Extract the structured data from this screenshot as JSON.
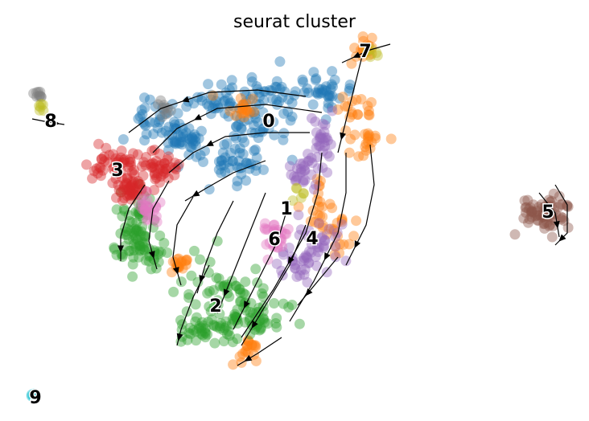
{
  "chart_data": {
    "type": "scatter",
    "title": "seurat cluster",
    "xlabel": "",
    "ylabel": "",
    "grid": false,
    "axes_visible": false,
    "legend": "on data",
    "overlay": "velocity streamlines",
    "clusters": [
      {
        "label": "0",
        "color": "#1f77b4"
      },
      {
        "label": "1",
        "color": "#ff7f0e"
      },
      {
        "label": "2",
        "color": "#2ca02c"
      },
      {
        "label": "3",
        "color": "#d62728"
      },
      {
        "label": "4",
        "color": "#9467bd"
      },
      {
        "label": "5",
        "color": "#8c564b"
      },
      {
        "label": "6",
        "color": "#e377c2"
      },
      {
        "label": "7",
        "color": "#7f7f7f"
      },
      {
        "label": "8",
        "color": "#bcbd22"
      },
      {
        "label": "9",
        "color": "#17becf"
      }
    ]
  }
}
